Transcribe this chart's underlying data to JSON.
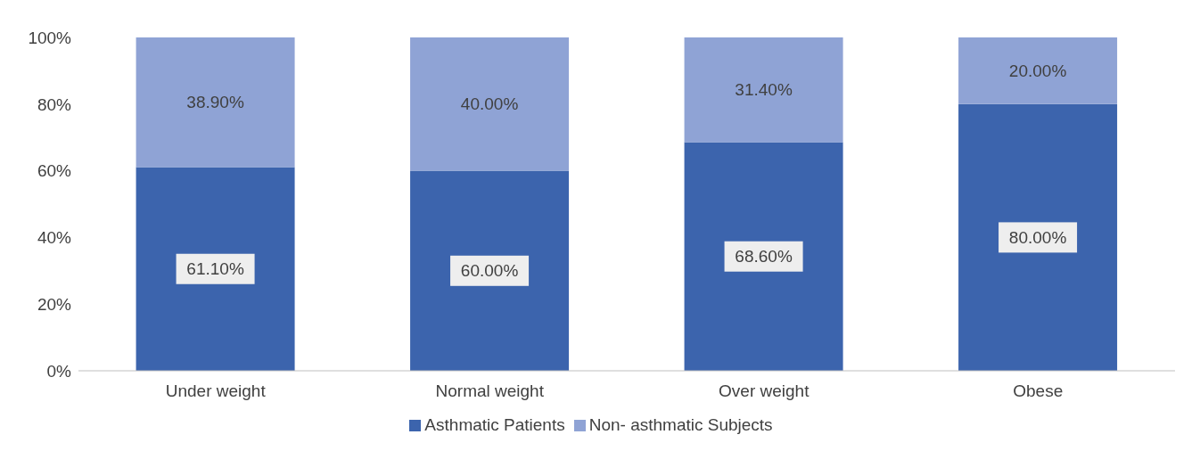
{
  "chart_data": {
    "type": "bar",
    "stacked": true,
    "categories": [
      "Under weight",
      "Normal weight",
      "Over weight",
      "Obese"
    ],
    "series": [
      {
        "name": "Asthmatic Patients",
        "color": "#3c64ad",
        "values": [
          61.1,
          60.0,
          68.6,
          80.0
        ],
        "value_labels": [
          "61.10%",
          "60.00%",
          "68.60%",
          "80.00%"
        ]
      },
      {
        "name": "Non- asthmatic Subjects",
        "color": "#8fa3d5",
        "values": [
          38.9,
          40.0,
          31.4,
          20.0
        ],
        "value_labels": [
          "38.90%",
          "40.00%",
          "31.40%",
          "20.00%"
        ]
      }
    ],
    "ylim": [
      0,
      100
    ],
    "yticks": [
      {
        "value": 0,
        "label": "0%"
      },
      {
        "value": 20,
        "label": "20%"
      },
      {
        "value": 40,
        "label": "40%"
      },
      {
        "value": 60,
        "label": "60%"
      },
      {
        "value": 80,
        "label": "80%"
      },
      {
        "value": 100,
        "label": "100%"
      }
    ],
    "grid": false,
    "legend": "bottom"
  }
}
